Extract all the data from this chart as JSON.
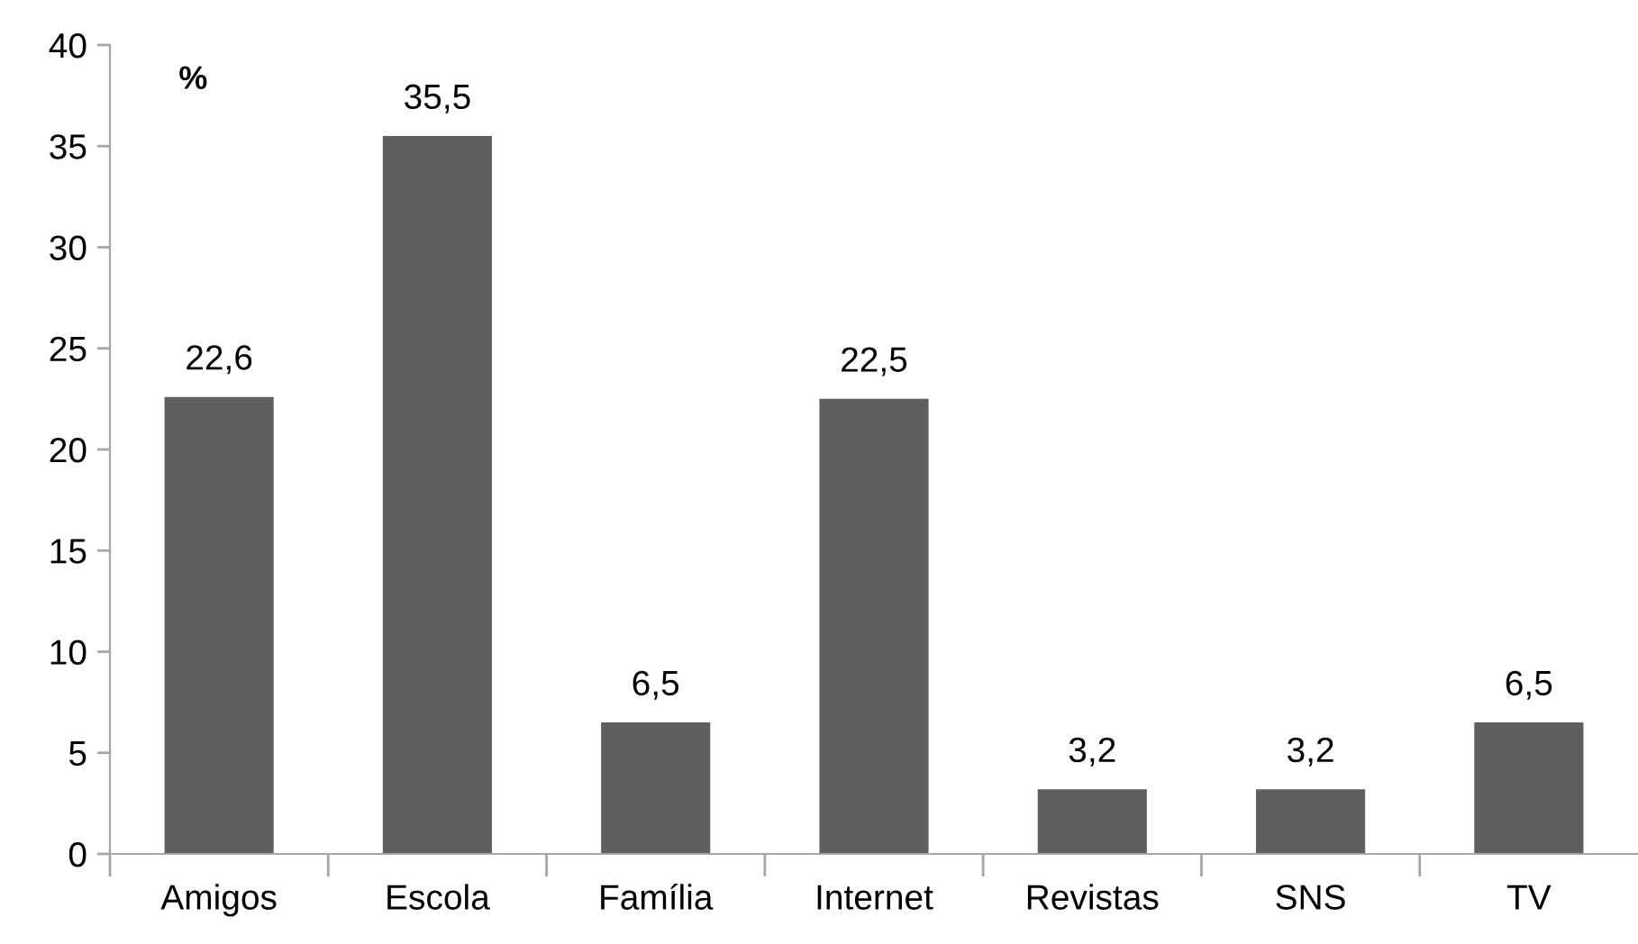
{
  "chart_data": {
    "type": "bar",
    "ylabel": "%",
    "categories": [
      "Amigos",
      "Escola",
      "Família",
      "Internet",
      "Revistas",
      "SNS",
      "TV"
    ],
    "values": [
      22.6,
      35.5,
      6.5,
      22.5,
      3.2,
      3.2,
      6.5
    ],
    "value_labels": [
      "22,6",
      "35,5",
      "6,5",
      "22,5",
      "3,2",
      "3,2",
      "6,5"
    ],
    "color": "#5f5f5f",
    "ylim": [
      0,
      40
    ],
    "yticks": [
      0,
      5,
      10,
      15,
      20,
      25,
      30,
      35,
      40
    ],
    "grid": false,
    "legend": false
  }
}
